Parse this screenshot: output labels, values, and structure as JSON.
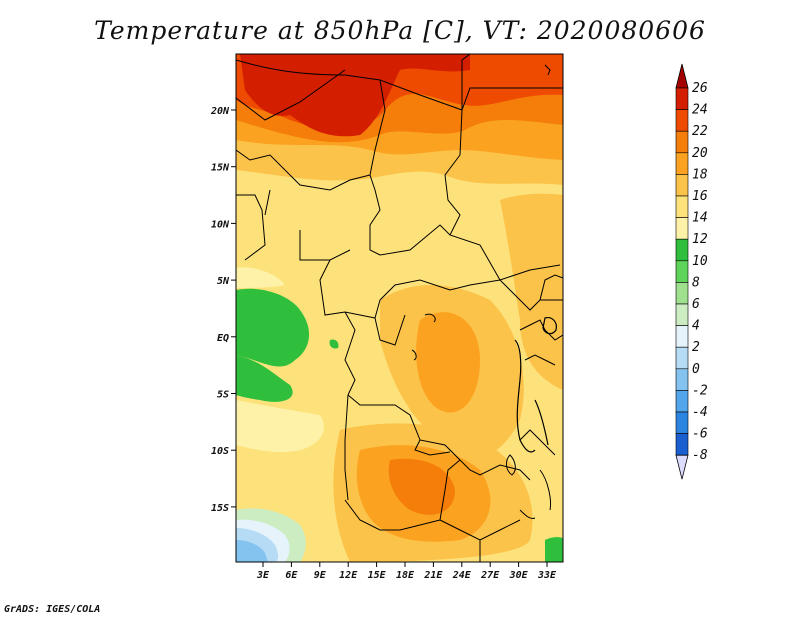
{
  "title": "Temperature at 850hPa [C], VT: 2020080606",
  "credit": "GrADS: IGES/COLA",
  "map": {
    "lon_ticks": [
      "3E",
      "6E",
      "9E",
      "12E",
      "15E",
      "18E",
      "21E",
      "24E",
      "27E",
      "30E",
      "33E"
    ],
    "lat_ticks": [
      "20N",
      "15N",
      "10N",
      "5N",
      "EQ",
      "5S",
      "10S",
      "15S"
    ]
  },
  "colorbar": {
    "labels": [
      "26",
      "24",
      "22",
      "20",
      "18",
      "16",
      "14",
      "12",
      "10",
      "8",
      "6",
      "4",
      "2",
      "0",
      "-2",
      "-4",
      "-6",
      "-8"
    ],
    "colors": [
      "#a50000",
      "#d41e00",
      "#ee4b00",
      "#f57d0a",
      "#fba321",
      "#fcc34a",
      "#fde27b",
      "#fdf2a8",
      "#2fbf3d",
      "#5fd45a",
      "#9ee08e",
      "#ccecc1",
      "#e6f3fb",
      "#b6dbf5",
      "#84c2f0",
      "#53a6eb",
      "#2a84e0",
      "#1a5fd0",
      "#0d3fb0",
      "#0a1f80"
    ]
  }
}
